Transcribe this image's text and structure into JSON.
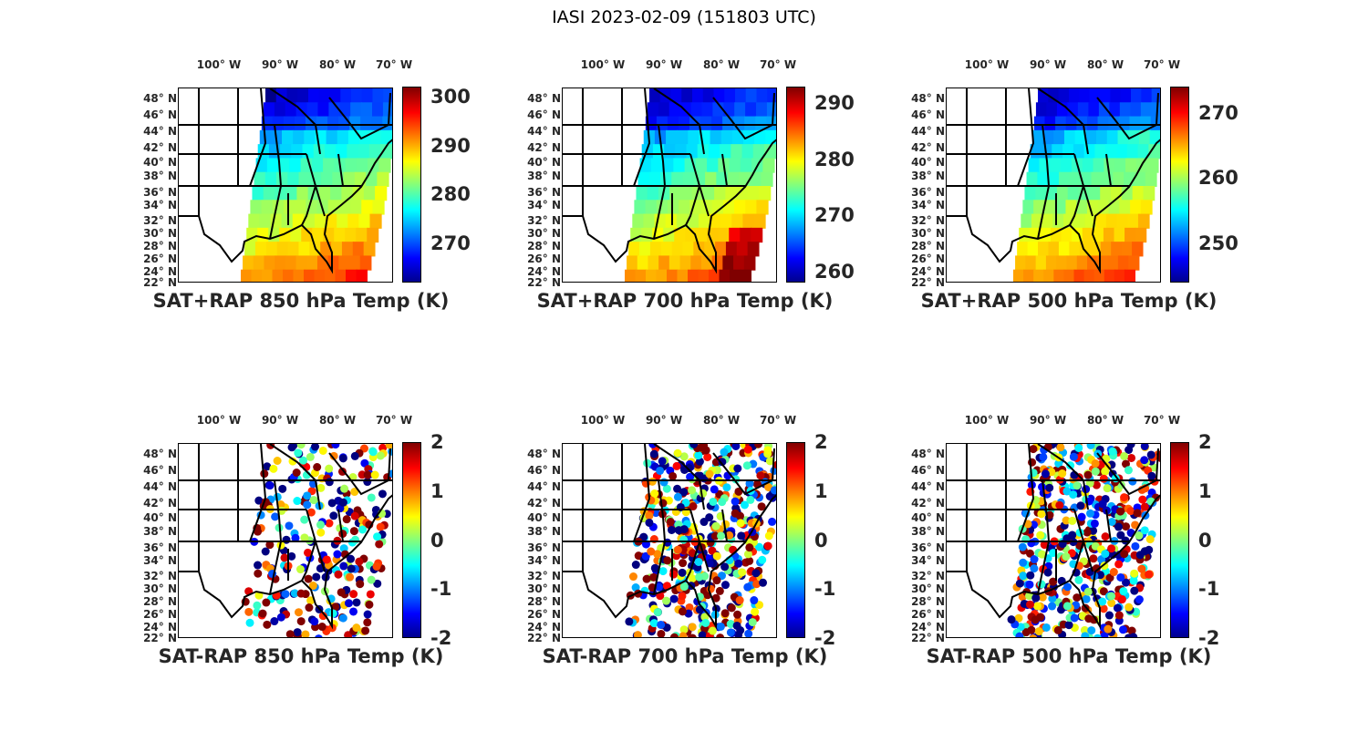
{
  "title": "IASI 2023-02-09 (151803 UTC)",
  "lon_labels": [
    "100° W",
    "90° W",
    "80° W",
    "70° W"
  ],
  "lat_labels": [
    "48° N",
    "46° N",
    "44° N",
    "42° N",
    "40° N",
    "38° N",
    "36° N",
    "34° N",
    "32° N",
    "30° N",
    "28° N",
    "26° N",
    "24° N",
    "22° N"
  ],
  "colormap": "jet",
  "panels": [
    {
      "title": "SAT+RAP 850 hPa Temp (K)",
      "clim": [
        262,
        302
      ],
      "ticks": [
        "300",
        "290",
        "280",
        "270"
      ],
      "tick_values": [
        300,
        290,
        280,
        270
      ],
      "kind": "field"
    },
    {
      "title": "SAT+RAP 700 hPa Temp (K)",
      "clim": [
        258,
        293
      ],
      "ticks": [
        "290",
        "280",
        "270",
        "260"
      ],
      "tick_values": [
        290,
        280,
        270,
        260
      ],
      "kind": "field"
    },
    {
      "title": "SAT+RAP 500 hPa Temp (K)",
      "clim": [
        244,
        274
      ],
      "ticks": [
        "270",
        "260",
        "250"
      ],
      "tick_values": [
        270,
        260,
        250
      ],
      "kind": "field"
    },
    {
      "title": "SAT-RAP 850 hPa Temp (K)",
      "clim": [
        -2,
        2
      ],
      "ticks": [
        "2",
        "1",
        "0",
        "-1",
        "-2"
      ],
      "tick_values": [
        2,
        1,
        0,
        -1,
        -2
      ],
      "kind": "diff"
    },
    {
      "title": "SAT-RAP 700 hPa Temp (K)",
      "clim": [
        -2,
        2
      ],
      "ticks": [
        "2",
        "1",
        "0",
        "-1",
        "-2"
      ],
      "tick_values": [
        2,
        1,
        0,
        -1,
        -2
      ],
      "kind": "diff"
    },
    {
      "title": "SAT-RAP 500 hPa Temp (K)",
      "clim": [
        -2,
        2
      ],
      "ticks": [
        "2",
        "1",
        "0",
        "-1",
        "-2"
      ],
      "tick_values": [
        2,
        1,
        0,
        -1,
        -2
      ],
      "kind": "diff"
    }
  ]
}
